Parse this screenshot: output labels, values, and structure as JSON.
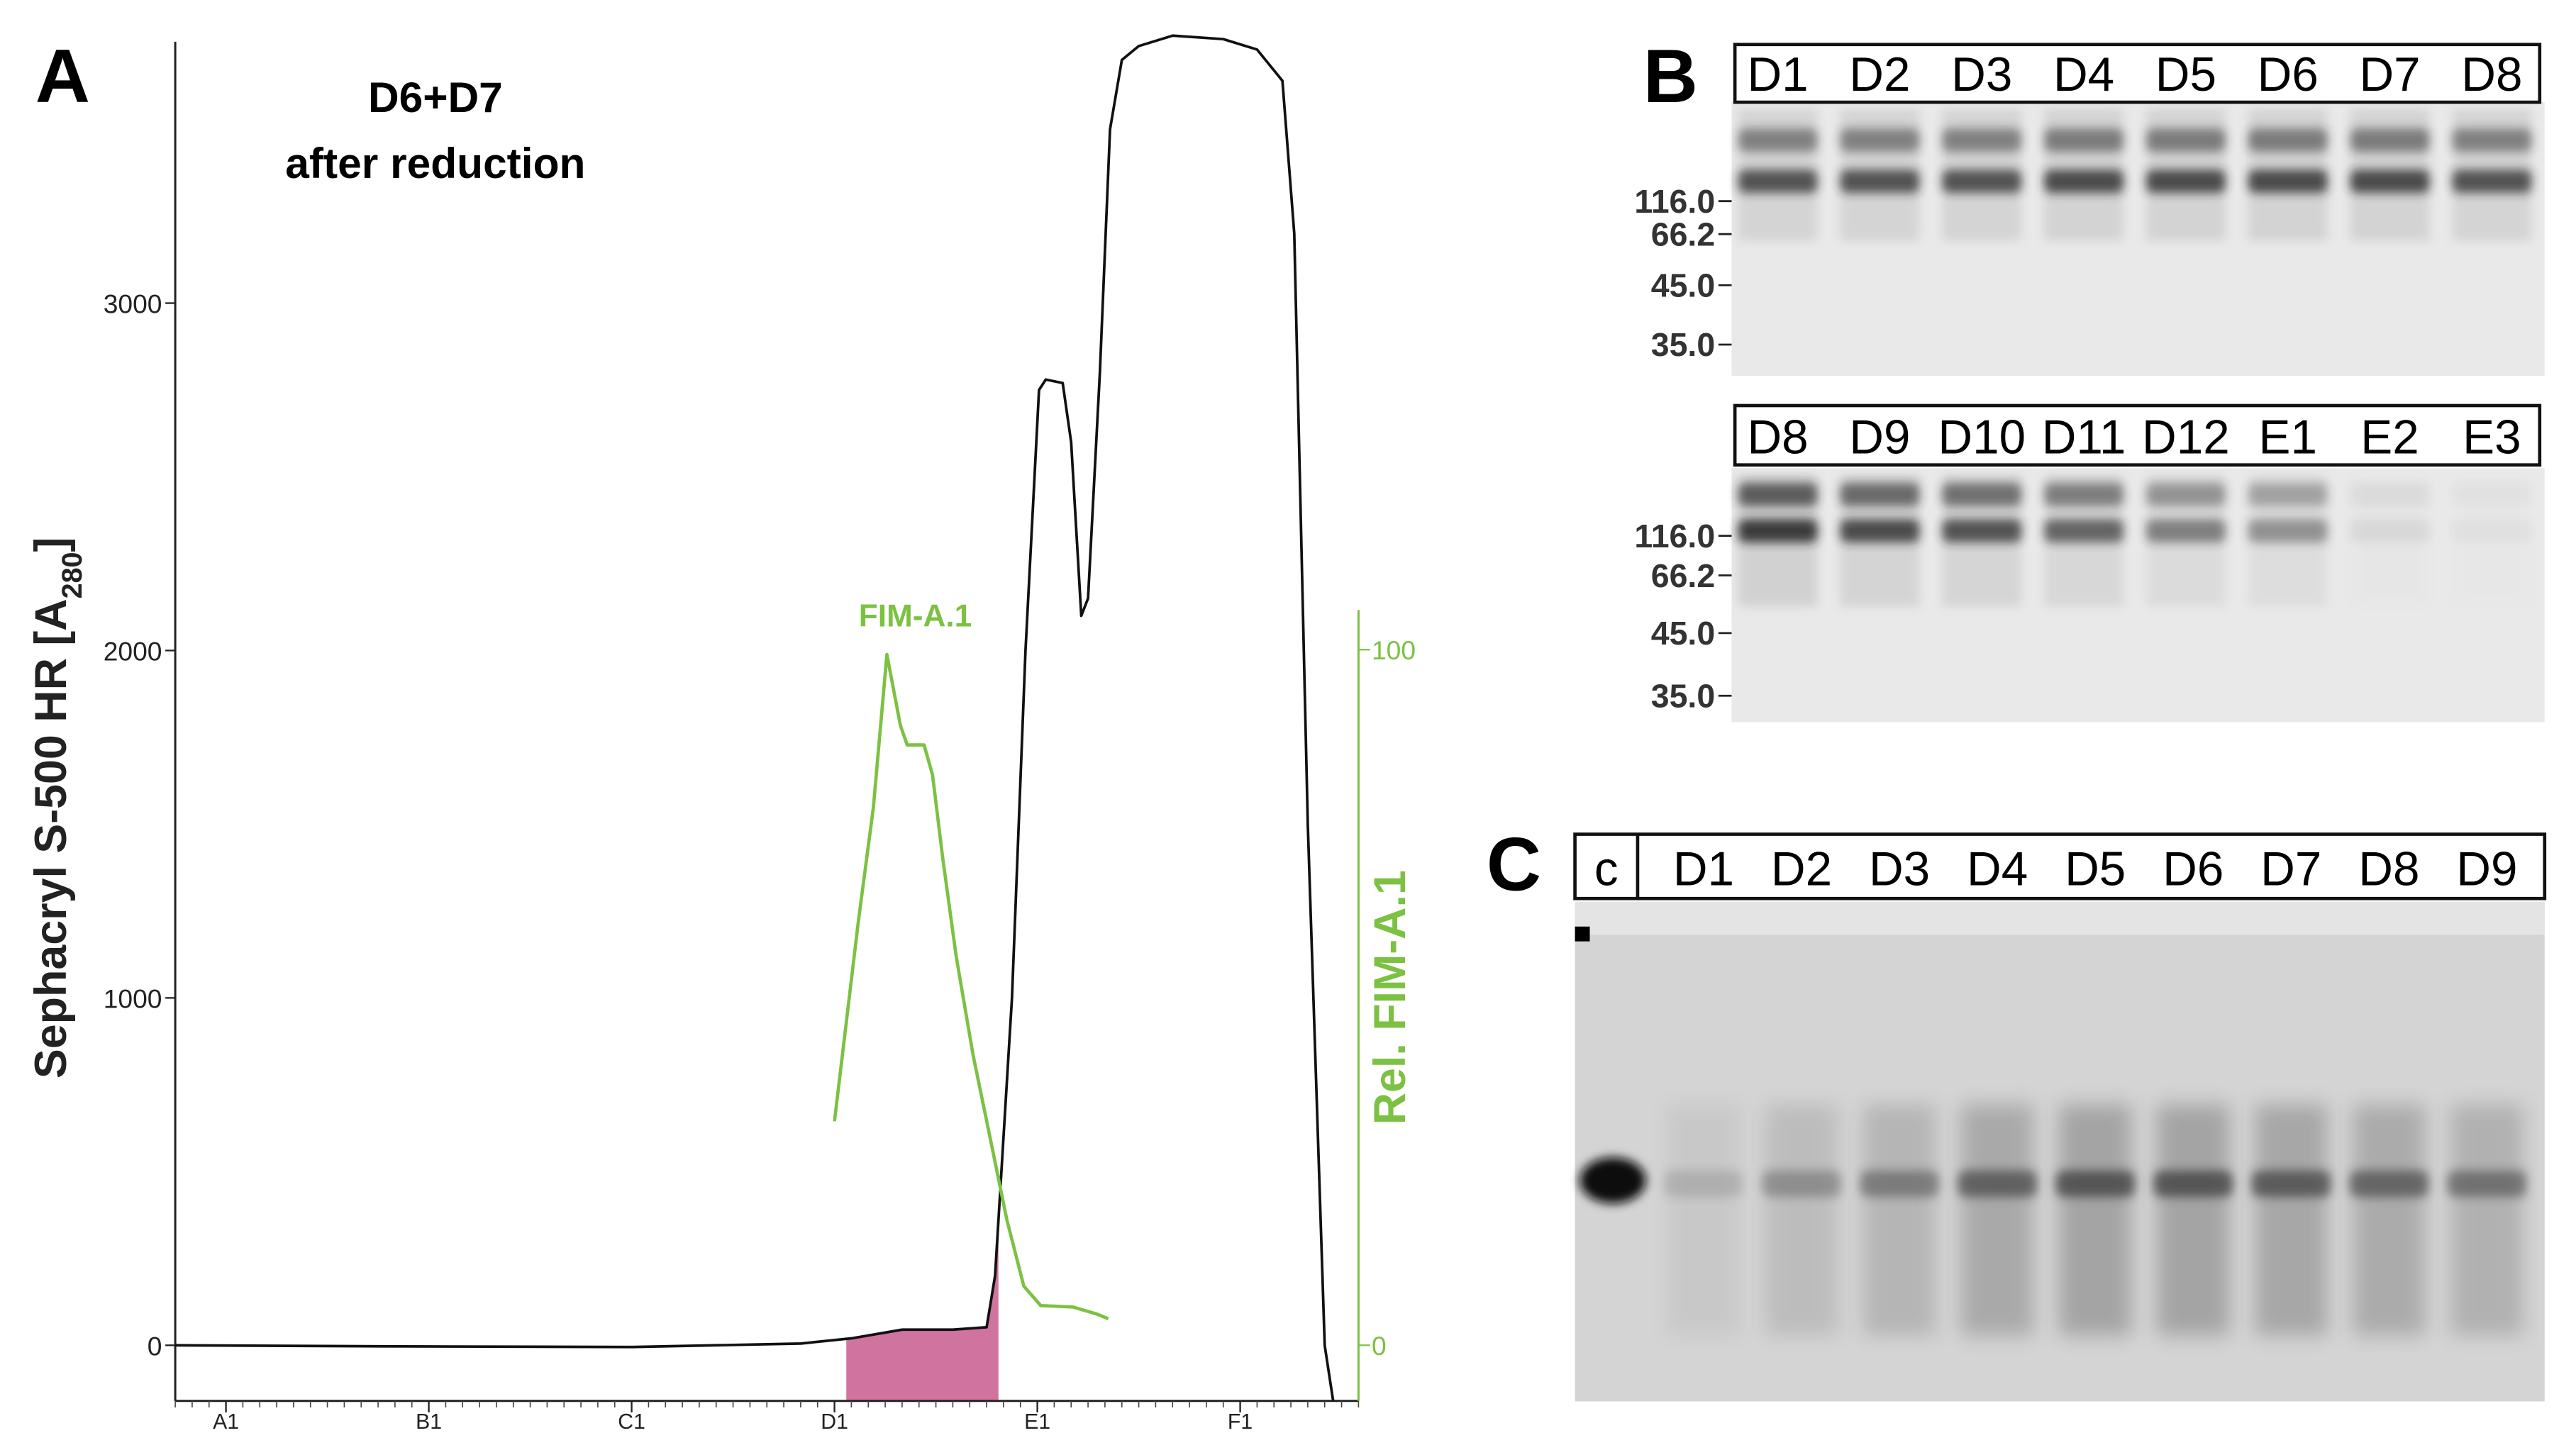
{
  "chart_data": {
    "type": "line",
    "panel_label": "A",
    "annotation": [
      "D6+D7",
      "after reduction"
    ],
    "ylabel": {
      "text": "Sephacryl S-500 HR [A",
      "subscript": "280",
      "suffix": "]"
    },
    "y2label": "Rel. FIM-A.1",
    "y2color": "#7cc142",
    "xlim": [
      -2,
      68
    ],
    "xticks": [
      {
        "value": 1,
        "label": "A1"
      },
      {
        "value": 13,
        "label": "B1"
      },
      {
        "value": 25,
        "label": "C1"
      },
      {
        "value": 37,
        "label": "D1"
      },
      {
        "value": 49,
        "label": "E1"
      },
      {
        "value": 61,
        "label": "F1"
      }
    ],
    "x_minor_step": 1,
    "ylim": [
      -160,
      3800
    ],
    "yticks": [
      0,
      1000,
      2000,
      3000
    ],
    "y2lim": [
      -8,
      105.7
    ],
    "y2ticks": [
      0,
      100
    ],
    "highlight": {
      "x": [
        37.7,
        46.7
      ],
      "color": "#d0749f"
    },
    "series": [
      {
        "color": "#111111",
        "axis": "y",
        "x": [
          -2,
          10,
          25,
          35,
          38,
          41,
          44,
          46,
          46.5,
          47.5,
          48.3,
          49.1,
          49.5,
          50.5,
          51,
          51.6,
          52,
          52.7,
          53.3,
          54,
          55,
          57,
          60,
          62,
          63.5,
          64.2,
          65,
          66,
          66.5
        ],
        "values": [
          0,
          -3,
          -5,
          5,
          20,
          45,
          45,
          52,
          200,
          1000,
          2000,
          2750,
          2780,
          2770,
          2600,
          2100,
          2150,
          2800,
          3500,
          3700,
          3740,
          3770,
          3760,
          3730,
          3640,
          3200,
          1500,
          0,
          -160
        ]
      },
      {
        "name": "FIM-A.1",
        "color": "#7cc142",
        "axis": "y2",
        "x": [
          37,
          38.4,
          39.3,
          40.1,
          40.9,
          41.3,
          42.3,
          42.8,
          43.4,
          44.2,
          45.2,
          46.2,
          47.2,
          48.2,
          49.2,
          51.1,
          52.5,
          53.2
        ],
        "values": [
          32.2,
          60.7,
          77.3,
          99.3,
          89.1,
          86.3,
          86.3,
          82,
          70.1,
          55.9,
          41.7,
          29.9,
          18,
          8.5,
          5.7,
          5.5,
          4.5,
          3.8
        ]
      }
    ]
  },
  "gel_panels": [
    {
      "label": "B",
      "gels": [
        {
          "lanes": [
            "D1",
            "D2",
            "D3",
            "D4",
            "D5",
            "D6",
            "D7",
            "D8"
          ],
          "markers": [
            "116.0",
            "66.2",
            "45.0",
            "35.0"
          ]
        },
        {
          "lanes": [
            "D8",
            "D9",
            "D10",
            "D11",
            "D12",
            "E1",
            "E2",
            "E3"
          ],
          "markers": [
            "116.0",
            "66.2",
            "45.0",
            "35.0"
          ]
        }
      ]
    },
    {
      "label": "C",
      "control": "c",
      "lanes": [
        "D1",
        "D2",
        "D3",
        "D4",
        "D5",
        "D6",
        "D7",
        "D8",
        "D9"
      ]
    }
  ]
}
